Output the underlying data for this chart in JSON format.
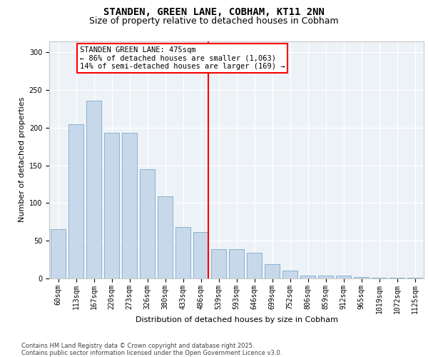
{
  "title1": "STANDEN, GREEN LANE, COBHAM, KT11 2NN",
  "title2": "Size of property relative to detached houses in Cobham",
  "xlabel": "Distribution of detached houses by size in Cobham",
  "ylabel": "Number of detached properties",
  "categories": [
    "60sqm",
    "113sqm",
    "167sqm",
    "220sqm",
    "273sqm",
    "326sqm",
    "380sqm",
    "433sqm",
    "486sqm",
    "539sqm",
    "593sqm",
    "646sqm",
    "699sqm",
    "752sqm",
    "806sqm",
    "859sqm",
    "912sqm",
    "965sqm",
    "1019sqm",
    "1072sqm",
    "1125sqm"
  ],
  "values": [
    65,
    205,
    236,
    193,
    193,
    145,
    109,
    68,
    62,
    39,
    39,
    34,
    19,
    10,
    4,
    4,
    4,
    2,
    1,
    1,
    1
  ],
  "bar_color": "#c8d8eb",
  "bar_edgecolor": "#7aaac8",
  "vline_index": 8,
  "vline_color": "red",
  "annotation_text": "STANDEN GREEN LANE: 475sqm\n← 86% of detached houses are smaller (1,063)\n14% of semi-detached houses are larger (169) →",
  "annotation_box_edgecolor": "red",
  "annotation_box_facecolor": "white",
  "ylim": [
    0,
    315
  ],
  "yticks": [
    0,
    50,
    100,
    150,
    200,
    250,
    300
  ],
  "axes_facecolor": "#edf2f7",
  "footer_text": "Contains HM Land Registry data © Crown copyright and database right 2025.\nContains public sector information licensed under the Open Government Licence v3.0.",
  "title1_fontsize": 10,
  "title2_fontsize": 9,
  "xlabel_fontsize": 8,
  "ylabel_fontsize": 8,
  "tick_fontsize": 7,
  "annotation_fontsize": 7.5,
  "footer_fontsize": 6
}
